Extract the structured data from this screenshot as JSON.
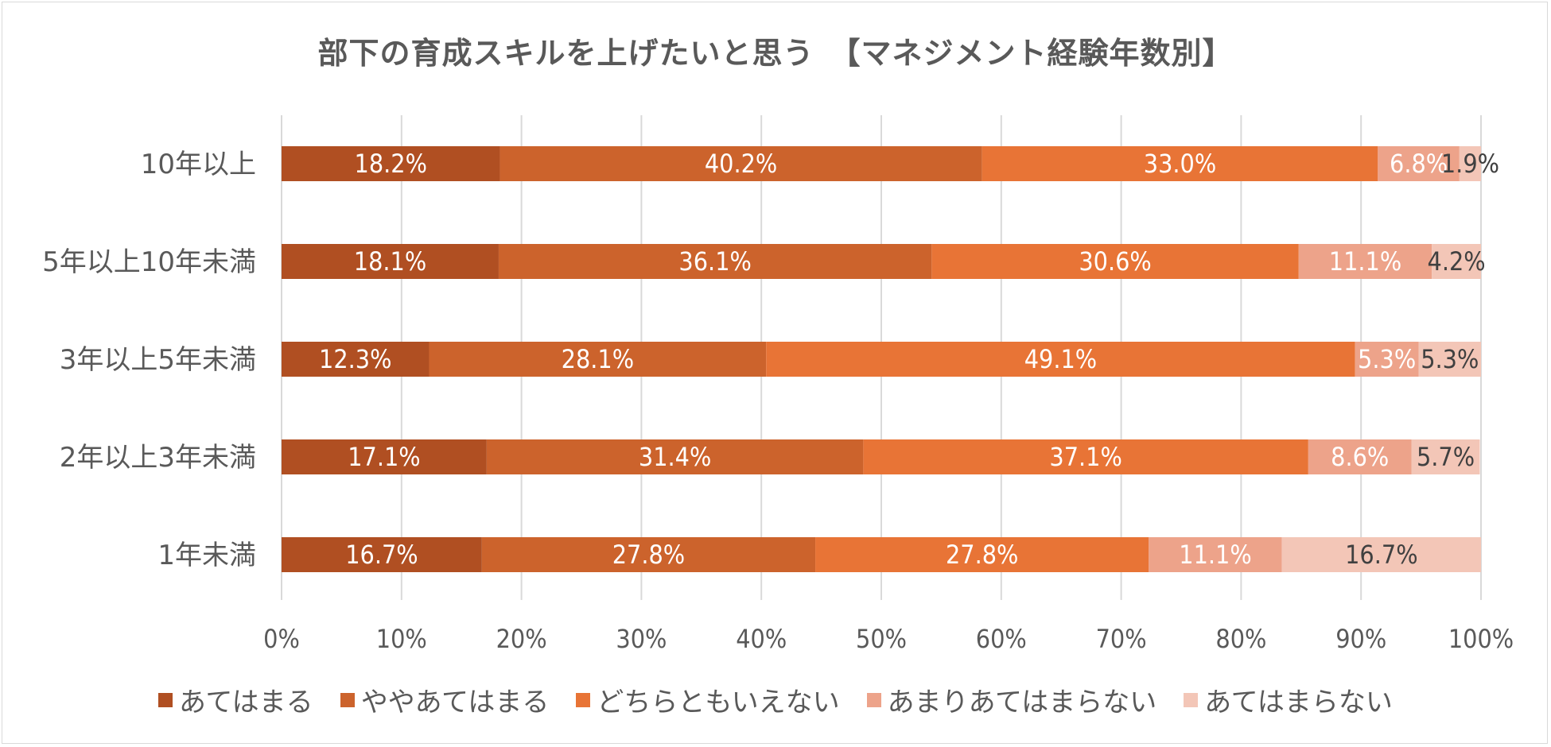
{
  "chart_data": {
    "type": "bar",
    "orientation": "horizontal",
    "stacked": "percent",
    "title": "部下の育成スキルを上げたいと思う　【マネジメント経験年数別】",
    "categories": [
      "10年以上",
      "5年以上10年未満",
      "3年以上5年未満",
      "2年以上3年未満",
      "1年未満"
    ],
    "series": [
      {
        "name": "あてはまる",
        "color": "#b04f22",
        "values": [
          18.2,
          18.1,
          12.3,
          17.1,
          16.7
        ]
      },
      {
        "name": "ややあてはまる",
        "color": "#cc632c",
        "values": [
          40.2,
          36.1,
          28.1,
          31.4,
          27.8
        ]
      },
      {
        "name": "どちらともいえない",
        "color": "#e87436",
        "values": [
          33.0,
          30.6,
          49.1,
          37.1,
          27.8
        ]
      },
      {
        "name": "あまりあてはまらない",
        "color": "#eda38a",
        "values": [
          6.8,
          11.1,
          5.3,
          8.6,
          11.1
        ]
      },
      {
        "name": "あてはまらない",
        "color": "#f3c6b7",
        "values": [
          1.9,
          4.2,
          5.3,
          5.7,
          16.7
        ]
      }
    ],
    "labels": [
      [
        "18.2%",
        "40.2%",
        "33.0%",
        "6.8%",
        "1.9%"
      ],
      [
        "18.1%",
        "36.1%",
        "30.6%",
        "11.1%",
        "4.2%"
      ],
      [
        "12.3%",
        "28.1%",
        "49.1%",
        "5.3%",
        "5.3%"
      ],
      [
        "17.1%",
        "31.4%",
        "37.1%",
        "8.6%",
        "5.7%"
      ],
      [
        "16.7%",
        "27.8%",
        "27.8%",
        "11.1%",
        "16.7%"
      ]
    ],
    "xlim": [
      0,
      100
    ],
    "xticks": [
      "0%",
      "10%",
      "20%",
      "30%",
      "40%",
      "50%",
      "60%",
      "70%",
      "80%",
      "90%",
      "100%"
    ],
    "grid": true,
    "legend_position": "bottom"
  }
}
